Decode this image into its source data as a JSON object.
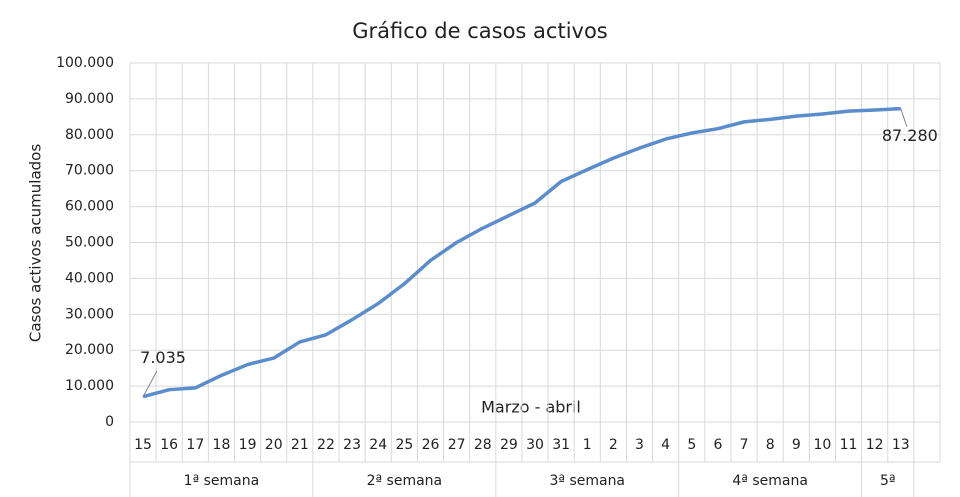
{
  "chart_data": {
    "type": "line",
    "title": "Gráfico de casos activos",
    "y_label": "Casos activos acumulados",
    "x_label": "Marzo - abril",
    "categories": [
      "15",
      "16",
      "17",
      "18",
      "19",
      "20",
      "21",
      "22",
      "23",
      "24",
      "25",
      "26",
      "27",
      "28",
      "29",
      "30",
      "31",
      "1",
      "2",
      "3",
      "4",
      "5",
      "6",
      "7",
      "8",
      "9",
      "10",
      "11",
      "12",
      "13",
      null
    ],
    "groups": [
      {
        "label": "1ª semana",
        "count": 7
      },
      {
        "label": "2ª semana",
        "count": 7
      },
      {
        "label": "3ª semana",
        "count": 7
      },
      {
        "label": "4ª semana",
        "count": 7
      },
      {
        "label": "5ª",
        "count": 2
      }
    ],
    "series": [
      {
        "name": "Casos activos acumulados",
        "color": "#5b8ccb",
        "values": [
          7035,
          9000,
          9500,
          13000,
          16000,
          17800,
          22300,
          24300,
          28500,
          33000,
          38500,
          45000,
          50000,
          54000,
          57500,
          61000,
          67000,
          70300,
          73500,
          76300,
          78800,
          80500,
          81700,
          83600,
          84300,
          85200,
          85800,
          86600,
          86900,
          87280,
          null
        ],
        "value_labels": [
          "7.035",
          null,
          null,
          null,
          null,
          null,
          null,
          null,
          null,
          null,
          null,
          null,
          null,
          null,
          null,
          null,
          null,
          null,
          null,
          null,
          null,
          null,
          null,
          null,
          null,
          null,
          null,
          null,
          null,
          "87.280",
          null
        ]
      }
    ],
    "ylim": [
      0,
      100000
    ],
    "yticks": [
      0,
      {
        "value": 10000,
        "label": "10.000"
      },
      {
        "value": 20000,
        "label": "20.000"
      },
      {
        "value": 30000,
        "label": "30.000"
      },
      {
        "value": 40000,
        "label": "40.000"
      },
      {
        "value": 50000,
        "label": "50.000"
      },
      {
        "value": 60000,
        "label": "60.000"
      },
      {
        "value": 70000,
        "label": "70.000"
      },
      {
        "value": 80000,
        "label": "80.000"
      },
      {
        "value": 90000,
        "label": "90.000"
      },
      {
        "value": 100000,
        "label": "100.000"
      }
    ],
    "grid": true
  }
}
